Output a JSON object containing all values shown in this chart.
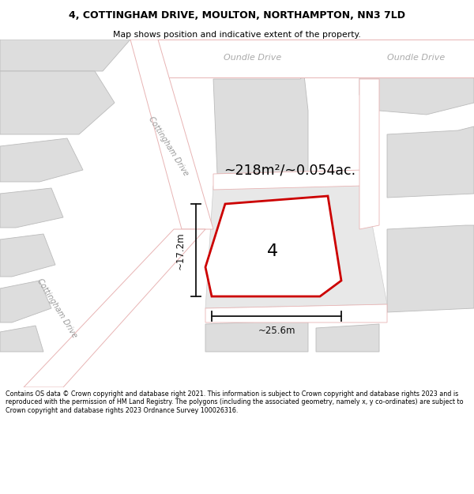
{
  "title": "4, COTTINGHAM DRIVE, MOULTON, NORTHAMPTON, NN3 7LD",
  "subtitle": "Map shows position and indicative extent of the property.",
  "footer": "Contains OS data © Crown copyright and database right 2021. This information is subject to Crown copyright and database rights 2023 and is reproduced with the permission of HM Land Registry. The polygons (including the associated geometry, namely x, y co-ordinates) are subject to Crown copyright and database rights 2023 Ordnance Survey 100026316.",
  "bg_color": "#f2f2f2",
  "road_color": "#ffffff",
  "road_outline": "#e8b4b4",
  "building_fill": "#dddddd",
  "building_outline": "#bbbbbb",
  "red_outline": "#cc0000",
  "dim_color": "#111111",
  "property_label": "4",
  "area_label": "~218m²/~0.054ac.",
  "width_label": "~25.6m",
  "height_label": "~17.2m",
  "street_label_cd": "Cottingham Drive",
  "street_label_od1": "Oundle Drive",
  "street_label_od2": "Oundle Drive",
  "figsize": [
    6.0,
    6.25
  ],
  "dpi": 100
}
